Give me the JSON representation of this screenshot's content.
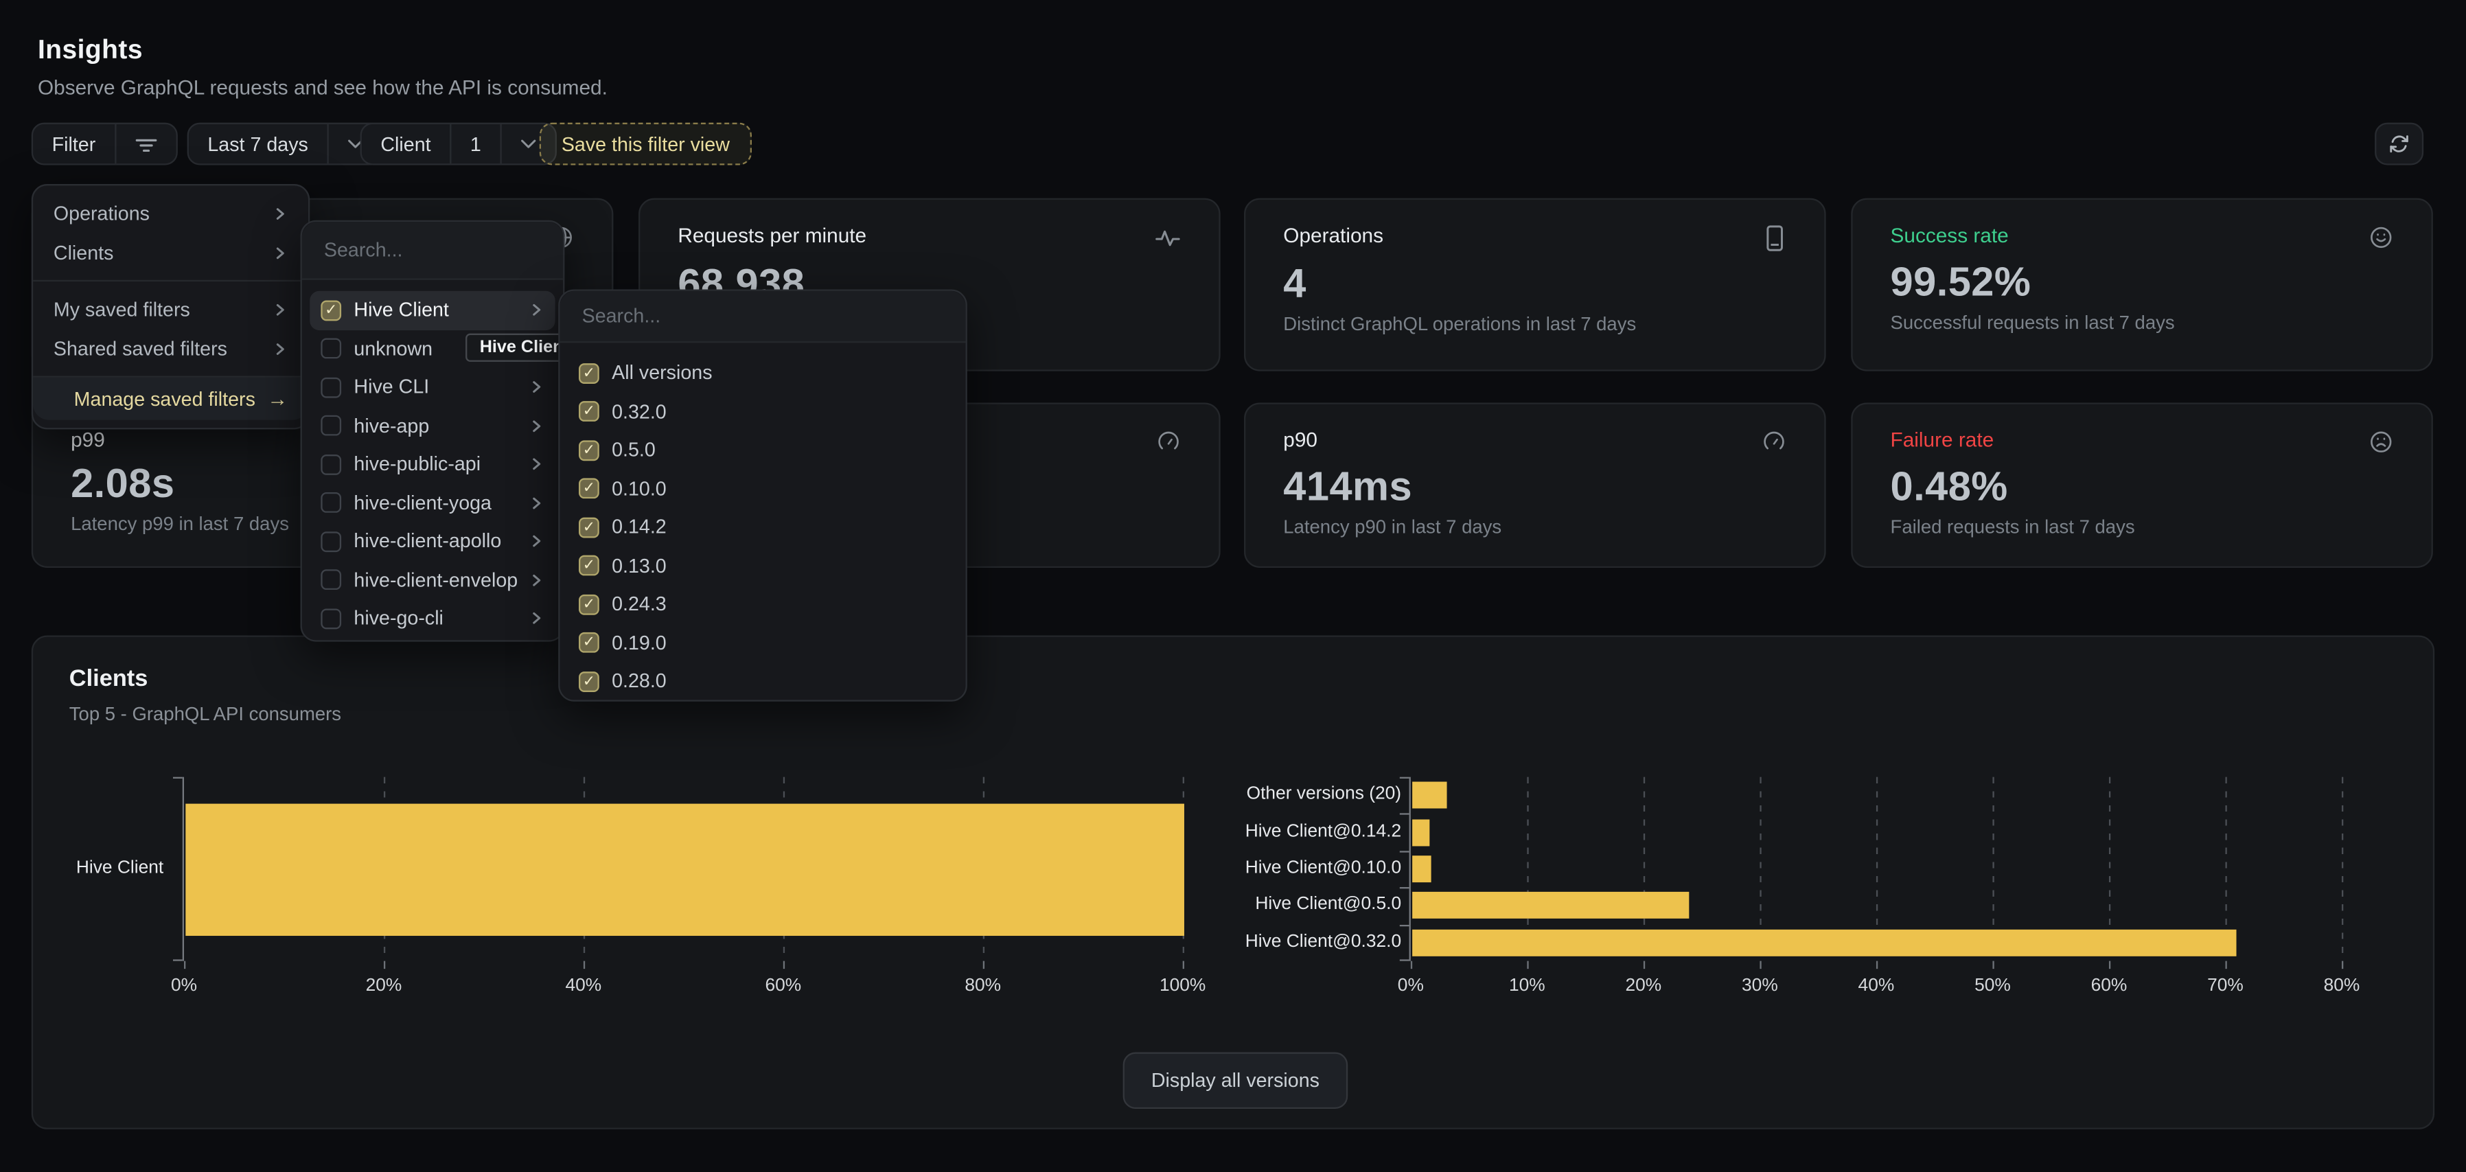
{
  "page": {
    "title": "Insights",
    "subtitle": "Observe GraphQL requests and see how the API is consumed."
  },
  "toolbar": {
    "filter_label": "Filter",
    "period_label": "Last 7 days",
    "client_label": "Client",
    "client_count": "1",
    "save_view_label": "Save this filter view",
    "refresh_icon": "refresh-cw"
  },
  "filter_menu": {
    "items": [
      {
        "label": "Operations"
      },
      {
        "label": "Clients"
      },
      {
        "label": "My saved filters"
      },
      {
        "label": "Shared saved filters"
      }
    ],
    "manage_label": "Manage saved filters",
    "manage_arrow": "→"
  },
  "client_menu": {
    "search_placeholder": "Search...",
    "items": [
      {
        "label": "Hive Client",
        "checked": true,
        "selected": true,
        "chevron": true
      },
      {
        "label": "unknown",
        "checked": false,
        "selected": false,
        "chevron": false
      },
      {
        "label": "Hive CLI",
        "checked": false,
        "selected": false,
        "chevron": true
      },
      {
        "label": "hive-app",
        "checked": false,
        "selected": false,
        "chevron": true
      },
      {
        "label": "hive-public-api",
        "checked": false,
        "selected": false,
        "chevron": true
      },
      {
        "label": "hive-client-yoga",
        "checked": false,
        "selected": false,
        "chevron": true
      },
      {
        "label": "hive-client-apollo",
        "checked": false,
        "selected": false,
        "chevron": true
      },
      {
        "label": "hive-client-envelop",
        "checked": false,
        "selected": false,
        "chevron": true
      },
      {
        "label": "hive-go-cli",
        "checked": false,
        "selected": false,
        "chevron": true
      }
    ]
  },
  "version_menu": {
    "search_placeholder": "Search...",
    "items": [
      {
        "label": "All versions",
        "checked": true
      },
      {
        "label": "0.32.0",
        "checked": true
      },
      {
        "label": "0.5.0",
        "checked": true
      },
      {
        "label": "0.10.0",
        "checked": true
      },
      {
        "label": "0.14.2",
        "checked": true
      },
      {
        "label": "0.13.0",
        "checked": true
      },
      {
        "label": "0.24.3",
        "checked": true
      },
      {
        "label": "0.19.0",
        "checked": true
      },
      {
        "label": "0.28.0",
        "checked": true
      }
    ]
  },
  "tooltip": {
    "text": "Hive Client"
  },
  "stat_cards": [
    {
      "title": "Requests per minute",
      "value": "68,938",
      "subtitle": "",
      "icon": "activity",
      "title_color": "#e9ecef"
    },
    {
      "title": "Operations",
      "value": "4",
      "subtitle": "Distinct GraphQL operations in last 7 days",
      "icon": "tablet",
      "title_color": "#e9ecef"
    },
    {
      "title": "Success rate",
      "value": "99.52%",
      "subtitle": "Successful requests in last 7 days",
      "icon": "smile",
      "title_color": "#3ecf8e"
    },
    {
      "title": "p99",
      "value": "2.08s",
      "subtitle": "Latency p99 in last 7 days",
      "icon": null,
      "title_color": "#e9ecef"
    },
    {
      "title": "p90",
      "value": "414ms",
      "subtitle": "Latency p90 in last 7 days",
      "icon": "gauge",
      "title_color": "#e9ecef"
    },
    {
      "title": "Failure rate",
      "value": "0.48%",
      "subtitle": "Failed requests in last 7 days",
      "icon": "frown",
      "title_color": "#ef4444"
    }
  ],
  "hidden_cards": [
    {
      "icon": "globe"
    },
    {
      "icon": "gauge"
    }
  ],
  "clients_section": {
    "title": "Clients",
    "subtitle": "Top 5 - GraphQL API consumers",
    "button_label": "Display all versions"
  },
  "chart_data": [
    {
      "type": "bar",
      "orientation": "horizontal",
      "title": "",
      "xlabel": "",
      "ylabel": "",
      "categories": [
        "Hive Client"
      ],
      "values": [
        100
      ],
      "xticks": [
        0,
        20,
        40,
        60,
        80,
        100
      ],
      "tick_suffix": "%",
      "xlim": [
        0,
        100
      ],
      "bar_color": "#edc24d",
      "grid": "dashed-vertical",
      "legend": "none"
    },
    {
      "type": "bar",
      "orientation": "horizontal",
      "title": "",
      "xlabel": "",
      "ylabel": "",
      "categories": [
        "Other versions (20)",
        "Hive Client@0.14.2",
        "Hive Client@0.10.0",
        "Hive Client@0.5.0",
        "Hive Client@0.32.0"
      ],
      "values": [
        3,
        1.5,
        1.6,
        23.8,
        70.8
      ],
      "xticks": [
        0,
        10,
        20,
        30,
        40,
        50,
        60,
        70,
        80
      ],
      "tick_suffix": "%",
      "xlim": [
        0,
        80
      ],
      "bar_color": "#edc24d",
      "grid": "dashed-vertical",
      "legend": "none"
    }
  ],
  "colors": {
    "accent_yellow": "#edc24d",
    "pale_yellow": "#e9dd9f",
    "success_green": "#3ecf8e",
    "failure_red": "#ef4444",
    "card_bg": "#15171a",
    "page_bg": "#0b0c0f"
  }
}
